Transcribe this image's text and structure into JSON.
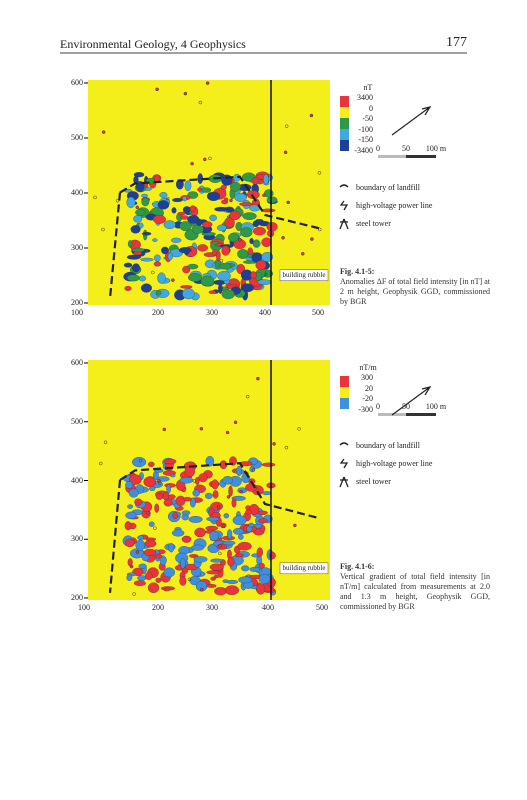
{
  "header": {
    "title": "Environmental Geology, 4 Geophysics",
    "page": "177"
  },
  "figures": [
    {
      "y_labels": [
        "600",
        "500",
        "400",
        "300",
        "200"
      ],
      "x_labels": [
        "100",
        "200",
        "300",
        "400",
        "500"
      ],
      "unit": "nT",
      "legend_labels": [
        "3400",
        "0",
        "-50",
        "-100",
        "-150",
        "-3400"
      ],
      "scale_labels": [
        "0",
        "50",
        "100 m"
      ],
      "symbols": [
        "boundary of landfill",
        "high-voltage power line",
        "steel tower"
      ],
      "annotation": "building rubble",
      "caption_label": "Fig. 4.1-5:",
      "caption": "Anomalies ΔF of total field intensity [in nT] at 2 m height, Geophysik GGD, commissioned by BGR"
    },
    {
      "y_labels": [
        "600",
        "500",
        "400",
        "300",
        "200"
      ],
      "x_labels": [
        "100",
        "200",
        "300",
        "400",
        "500"
      ],
      "unit": "nT/m",
      "legend_labels": [
        "300",
        "20",
        "-20",
        "-300"
      ],
      "scale_labels": [
        "0",
        "50",
        "100 m"
      ],
      "symbols": [
        "boundary of landfill",
        "high-voltage power line",
        "steel tower"
      ],
      "annotation": "building rubble",
      "caption_label": "Fig. 4.1-6:",
      "caption": "Vertical gradient of total field intensity [in nT/m] calculated from measurements at 2.0 and 1.3 m height, Geophysik GGD, commissioned by BGR"
    }
  ]
}
